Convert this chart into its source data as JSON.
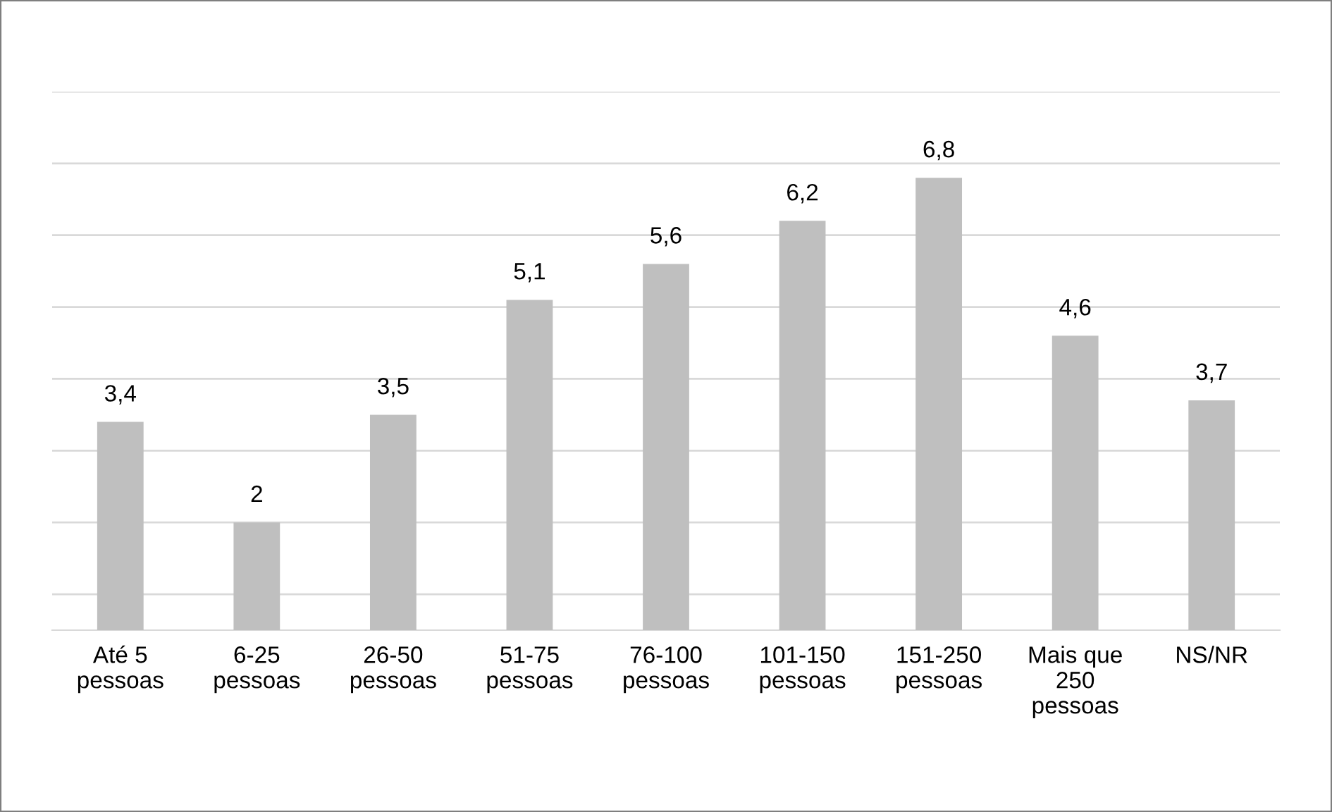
{
  "chart_data": {
    "type": "bar",
    "categories": [
      "Até 5\npessoas",
      "6-25\npessoas",
      "26-50\npessoas",
      "51-75\npessoas",
      "76-100\npessoas",
      "101-150\npessoas",
      "151-250\npessoas",
      "Mais que\n250\npessoas",
      "NS/NR"
    ],
    "values": [
      3.4,
      2,
      3.5,
      5.1,
      5.6,
      6.2,
      6.8,
      4.6,
      3.7
    ],
    "value_labels": [
      "3,4",
      "2",
      "3,5",
      "5,1",
      "5,6",
      "6,2",
      "6,8",
      "4,6",
      "3,7"
    ],
    "color": "#bfbfbf",
    "ylim": [
      0.5,
      8
    ],
    "yticks": [
      {
        "value": 1,
        "label": null
      },
      {
        "value": 2,
        "label": null
      },
      {
        "value": 3,
        "label": null
      },
      {
        "value": 4,
        "label": null
      },
      {
        "value": 5,
        "label": null
      },
      {
        "value": 6,
        "label": null
      },
      {
        "value": 7,
        "label": null
      },
      {
        "value": 8,
        "label": null
      }
    ],
    "grid": "y",
    "tick_labels": "x"
  }
}
